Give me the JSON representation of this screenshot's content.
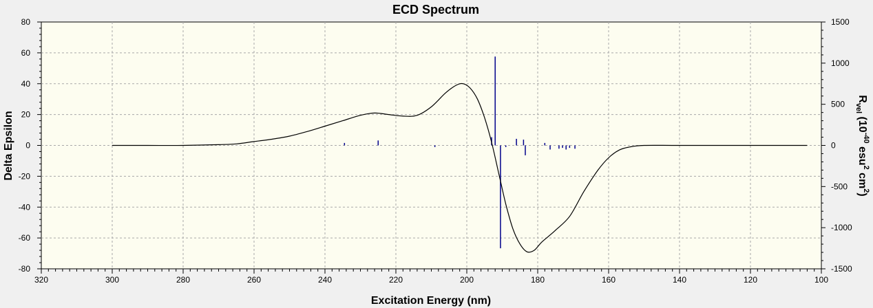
{
  "chart_data": {
    "type": "line",
    "title": "ECD Spectrum",
    "xlabel": "Excitation Energy (nm)",
    "ylabel": "Delta Epsilon",
    "y2label": {
      "r": "R",
      "vel": "vel",
      "open": " (10",
      "exp": "-40",
      "esu": " esu",
      "sq1": "2",
      "cm": " cm",
      "sq2": "2",
      "close": ")"
    },
    "xlim": [
      320,
      100
    ],
    "ylim": [
      -80,
      80
    ],
    "y2lim": [
      -1500,
      1500
    ],
    "x_ticks": [
      "320",
      "300",
      "280",
      "260",
      "240",
      "220",
      "200",
      "180",
      "160",
      "140",
      "120",
      "100"
    ],
    "y_ticks": [
      "80",
      "60",
      "40",
      "20",
      "0",
      "-20",
      "-40",
      "-60",
      "-80"
    ],
    "y2_ticks": [
      "1500",
      "1000",
      "500",
      "0",
      "-500",
      "-1000",
      "-1500"
    ],
    "grid": true,
    "colors": {
      "curve": "#000000",
      "sticks": "#00008b",
      "plot_bg": "#fdfdf0",
      "grid": "#a8a8a8"
    },
    "series": [
      {
        "type": "line",
        "x": [
          300,
          290,
          280,
          270,
          265,
          260,
          255,
          250,
          245,
          240,
          235,
          230,
          226,
          222,
          218,
          214,
          210,
          206,
          203,
          201,
          199,
          197,
          195,
          193,
          191,
          189,
          187,
          185,
          183,
          181,
          179,
          177,
          175,
          171,
          167,
          163,
          160,
          157,
          154,
          150,
          140,
          120,
          104
        ],
        "y": [
          0,
          0,
          0,
          0.5,
          1,
          2.5,
          4,
          6,
          9,
          12.5,
          16,
          19.5,
          21,
          20,
          19,
          19.5,
          25,
          34,
          39,
          40,
          37,
          30,
          18,
          2,
          -18,
          -38,
          -54,
          -64,
          -69,
          -68,
          -63,
          -59,
          -55,
          -46,
          -30,
          -16,
          -8,
          -3,
          -1,
          0,
          0,
          0,
          0
        ]
      },
      {
        "type": "stick",
        "x": [
          234.5,
          225,
          209,
          193,
          192,
          190.5,
          189,
          186,
          184,
          183.5,
          178,
          176.5,
          174,
          173,
          172,
          171,
          169.5
        ],
        "y": [
          30,
          60,
          -20,
          100,
          1080,
          -1250,
          -20,
          80,
          70,
          -120,
          30,
          -50,
          -40,
          -30,
          -50,
          -30,
          -40
        ]
      }
    ]
  }
}
